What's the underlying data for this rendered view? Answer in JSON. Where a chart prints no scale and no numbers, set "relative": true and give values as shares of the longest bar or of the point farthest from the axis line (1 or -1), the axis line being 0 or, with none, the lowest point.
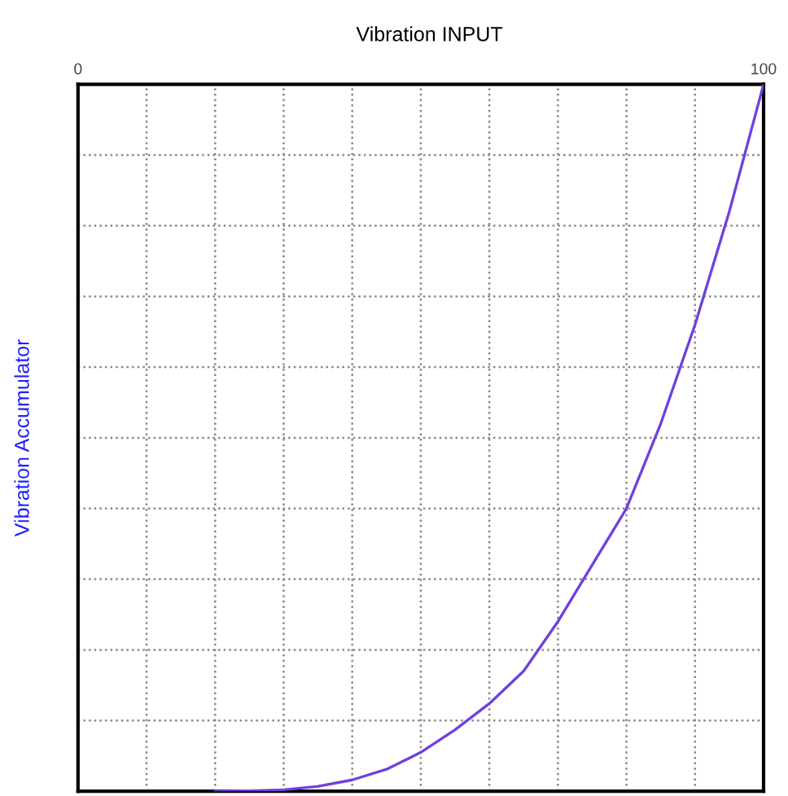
{
  "chart_data": {
    "type": "line",
    "title": "Vibration INPUT",
    "ylabel": "Vibration Accumulator",
    "x": [
      20,
      25,
      30,
      35,
      40,
      45,
      50,
      55,
      60,
      65,
      70,
      75,
      80,
      85,
      90,
      95,
      100
    ],
    "series": [
      {
        "color": "#7040e0",
        "values": [
          0,
          0.0005,
          0.002,
          0.007,
          0.016,
          0.031,
          0.055,
          0.087,
          0.124,
          0.17,
          0.24,
          0.32,
          0.4,
          0.52,
          0.66,
          0.82,
          1.0
        ]
      }
    ],
    "relative": true,
    "xlim": [
      0,
      100
    ],
    "xticks": [
      0,
      {
        "value": 10,
        "label": null
      },
      {
        "value": 20,
        "label": null
      },
      {
        "value": 30,
        "label": null
      },
      {
        "value": 40,
        "label": null
      },
      {
        "value": 50,
        "label": null
      },
      {
        "value": 60,
        "label": null
      },
      {
        "value": 70,
        "label": null
      },
      {
        "value": 80,
        "label": null
      },
      {
        "value": 90,
        "label": null
      },
      100
    ],
    "tick_labels": "x",
    "grid": true,
    "marker": "none",
    "line_style": "solid"
  }
}
